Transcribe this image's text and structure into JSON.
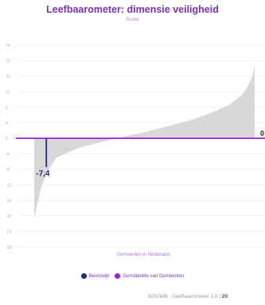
{
  "chart_data": {
    "type": "area",
    "title": "Leefbaarometer: dimensie veiligheid",
    "subtitle": "Score",
    "xlabel": "Gemeenten in Nederland",
    "ylabel": "",
    "ylim": [
      -28,
      26
    ],
    "yticks": [
      24,
      20,
      16,
      12,
      8,
      4,
      0,
      -4,
      -8,
      -12,
      -16,
      -20,
      -24,
      -28
    ],
    "grid": true,
    "legend_position": "bottom-center",
    "distribution_series": {
      "x": [
        0,
        0.03,
        0.06,
        0.1,
        0.2,
        0.3,
        0.4,
        0.5,
        0.6,
        0.7,
        0.8,
        0.88,
        0.94,
        0.97,
        0.99,
        1.0
      ],
      "y": [
        -20.5,
        -13,
        -8.5,
        -5,
        -2.5,
        -1,
        0.3,
        1.6,
        3,
        4.5,
        6.5,
        8.5,
        11,
        13.5,
        16,
        19
      ]
    },
    "reference_line": {
      "value": 0,
      "label": "0"
    },
    "highlight": {
      "name": "Beverwijk",
      "value": -7.4,
      "label": "-7,4",
      "x": 0.055
    },
    "legend": [
      {
        "label": "Beverwijk",
        "color": "#1f2a8a"
      },
      {
        "label": "Gemiddelde van Gemeenten",
        "color": "#a21fd0"
      }
    ],
    "colors": {
      "area": "#d8d8d8",
      "mean_line": "#a21fd0",
      "highlight": "#1f2a8a",
      "axis_text": "#b3b3b3",
      "grid": "#eeeeee"
    }
  },
  "source": {
    "prefix": "BZK/WB - Leefbaarometer 2.0 | ",
    "bold": "20"
  }
}
